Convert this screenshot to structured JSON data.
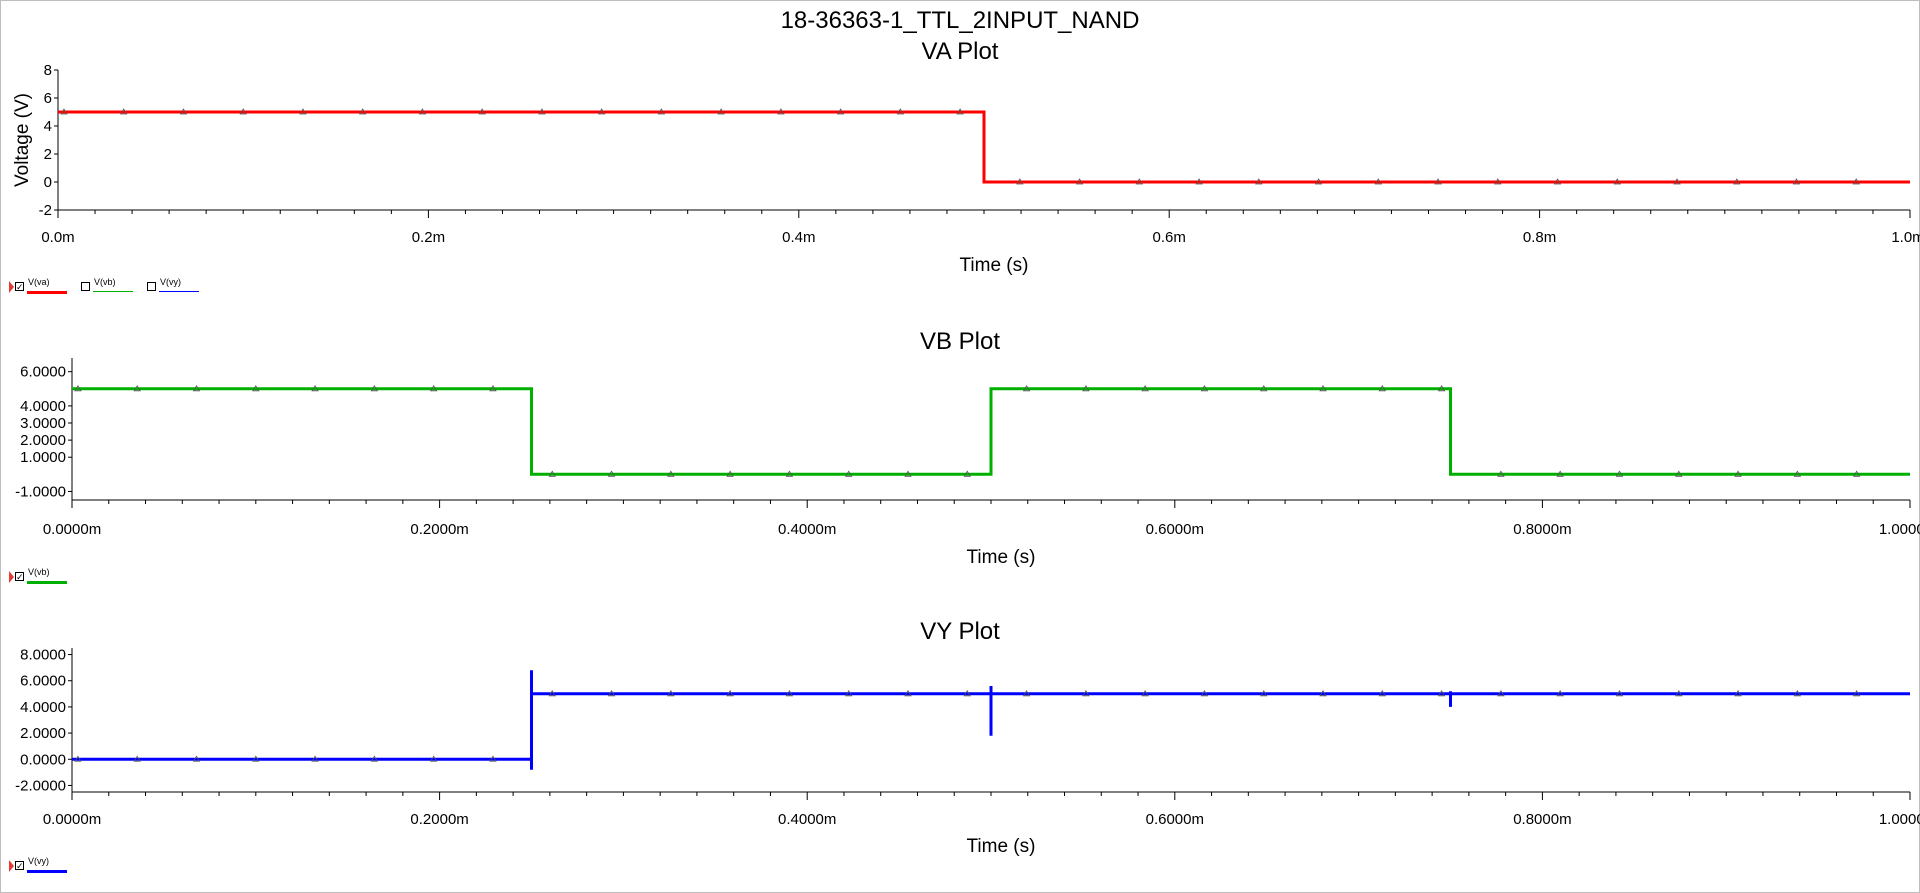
{
  "window": {
    "title": "18-36363-1_TTL_2INPUT_NAND"
  },
  "colors": {
    "va": "#ff0000",
    "vb": "#00b000",
    "vy": "#0000ff",
    "axis": "#000000",
    "marker": "#e53935"
  },
  "chart_data": [
    {
      "type": "line",
      "title": "VA Plot",
      "xlabel": "Time (s)",
      "ylabel": "Voltage (V)",
      "xlim": [
        0,
        1.0
      ],
      "ylim": [
        -2,
        8
      ],
      "xticks": [
        0,
        0.2,
        0.4,
        0.6,
        0.8,
        1.0
      ],
      "xtick_labels": [
        "0.0m",
        "0.2m",
        "0.4m",
        "0.6m",
        "0.8m",
        "1.0m"
      ],
      "yticks": [
        -2,
        0,
        2,
        4,
        6,
        8
      ],
      "ytick_labels": [
        "-2",
        "0",
        "2",
        "4",
        "6",
        "8"
      ],
      "grid": false,
      "series": [
        {
          "name": "V(va)",
          "color": "#ff0000",
          "x": [
            0,
            0.5,
            0.5,
            1.0
          ],
          "y": [
            5,
            5,
            0,
            0
          ]
        }
      ],
      "legend": [
        {
          "label": "V(va)",
          "checked": true,
          "color": "#ff0000"
        },
        {
          "label": "V(vb)",
          "checked": false,
          "color": "#00b000"
        },
        {
          "label": "V(vy)",
          "checked": false,
          "color": "#0000ff"
        }
      ]
    },
    {
      "type": "line",
      "title": "VB Plot",
      "xlabel": "Time (s)",
      "ylabel": "",
      "xlim": [
        0,
        1.0
      ],
      "ylim": [
        -1.5,
        6.8
      ],
      "xticks": [
        0,
        0.2,
        0.4,
        0.6,
        0.8,
        1.0
      ],
      "xtick_labels": [
        "0.0000m",
        "0.2000m",
        "0.4000m",
        "0.6000m",
        "0.8000m",
        "1.0000m"
      ],
      "yticks": [
        -1,
        1,
        2,
        3,
        4,
        6
      ],
      "ytick_labels": [
        "-1.0000",
        "1.0000",
        "2.0000",
        "3.0000",
        "4.0000",
        "6.0000"
      ],
      "grid": false,
      "series": [
        {
          "name": "V(vb)",
          "color": "#00b000",
          "x": [
            0,
            0.25,
            0.25,
            0.5,
            0.5,
            0.75,
            0.75,
            1.0
          ],
          "y": [
            5,
            5,
            0,
            0,
            5,
            5,
            0,
            0
          ]
        }
      ],
      "legend": [
        {
          "label": "V(vb)",
          "checked": true,
          "color": "#00b000"
        }
      ]
    },
    {
      "type": "line",
      "title": "VY Plot",
      "xlabel": "Time (s)",
      "ylabel": "",
      "xlim": [
        0,
        1.0
      ],
      "ylim": [
        -2.5,
        8.5
      ],
      "xticks": [
        0,
        0.2,
        0.4,
        0.6,
        0.8,
        1.0
      ],
      "xtick_labels": [
        "0.0000m",
        "0.2000m",
        "0.4000m",
        "0.6000m",
        "0.8000m",
        "1.0000m"
      ],
      "yticks": [
        -2,
        0,
        2,
        4,
        6,
        8
      ],
      "ytick_labels": [
        "-2.0000",
        "0.0000",
        "2.0000",
        "4.0000",
        "6.0000",
        "8.0000"
      ],
      "grid": false,
      "series": [
        {
          "name": "V(vy)",
          "color": "#0000ff",
          "x": [
            0,
            0.25,
            0.25,
            0.25,
            0.25,
            0.5,
            0.5,
            0.5,
            0.5,
            0.75,
            0.75,
            0.75,
            0.75,
            1.0
          ],
          "y": [
            0,
            0,
            -0.8,
            6.8,
            5,
            5,
            5.6,
            1.8,
            5,
            5,
            4.0,
            5.2,
            5,
            5
          ]
        }
      ],
      "legend": [
        {
          "label": "V(vy)",
          "checked": true,
          "color": "#0000ff"
        }
      ]
    }
  ]
}
